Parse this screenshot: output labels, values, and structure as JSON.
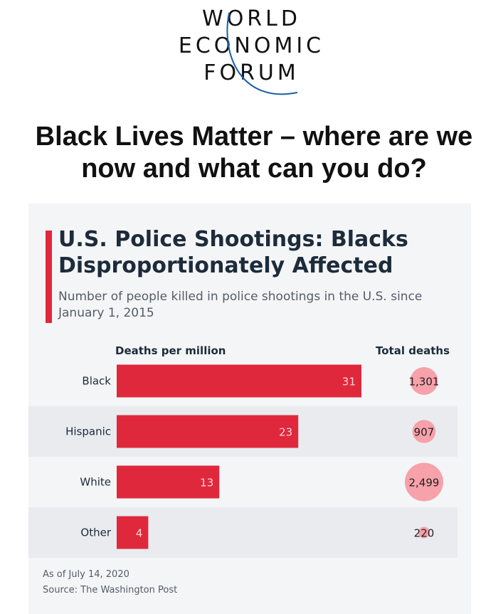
{
  "logo": {
    "line1": "WORLD",
    "line2": "ECONOMIC",
    "line3": "FORUM",
    "arc_color": "#1a5fa8"
  },
  "headline": "Black Lives Matter – where are we now and what can you do?",
  "colors": {
    "bar": "#e0283c",
    "bubble": "#f7a1ab",
    "accent": "#e0283c",
    "card_bg": "#f4f5f7",
    "stripe": "#e9ebef"
  },
  "chart_data": {
    "type": "bar",
    "orientation": "horizontal",
    "title": "U.S. Police Shootings: Blacks Disproportionately Affected",
    "subtitle": "Number of people killed in police shootings in the U.S. since January 1, 2015",
    "column_headers": {
      "bars": "Deaths per million",
      "totals": "Total deaths"
    },
    "categories": [
      "Black",
      "Hispanic",
      "White",
      "Other"
    ],
    "series": [
      {
        "name": "Deaths per million",
        "values": [
          31,
          23,
          13,
          4
        ]
      },
      {
        "name": "Total deaths",
        "values": [
          1301,
          907,
          2499,
          220
        ]
      }
    ],
    "total_labels": [
      "1,301",
      "907",
      "2,499",
      "220"
    ],
    "footnote": "As of July 14, 2020",
    "source": "Source: The Washington Post"
  }
}
